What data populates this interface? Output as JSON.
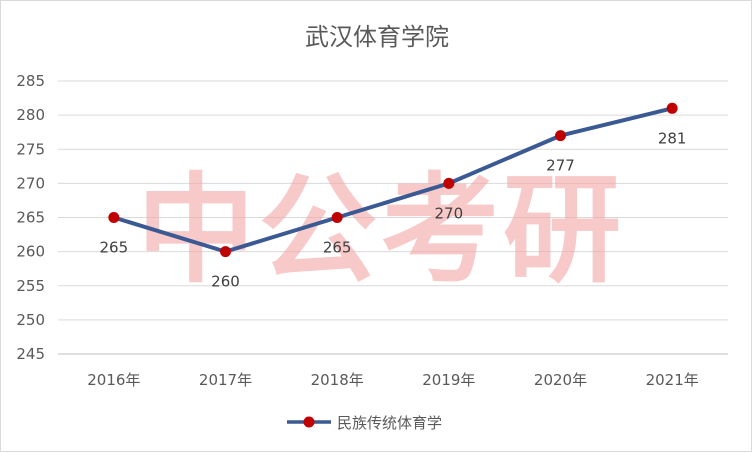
{
  "chart_data": {
    "type": "line",
    "title": "武汉体育学院",
    "categories": [
      "2016年",
      "2017年",
      "2018年",
      "2019年",
      "2020年",
      "2021年"
    ],
    "series": [
      {
        "name": "民族传统体育学",
        "values": [
          265,
          260,
          265,
          270,
          277,
          281
        ],
        "color": "#3b5a93",
        "marker_color": "#c00000"
      }
    ],
    "ylim": [
      245,
      285
    ],
    "y_ticks": [
      245,
      250,
      255,
      260,
      265,
      270,
      275,
      280,
      285
    ],
    "grid": true,
    "legend": "bottom",
    "xlabel": "",
    "ylabel": ""
  },
  "watermark": "中公考研"
}
